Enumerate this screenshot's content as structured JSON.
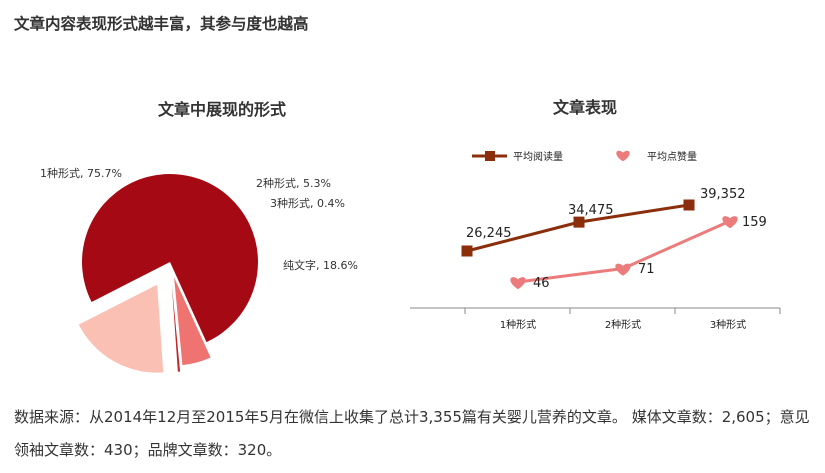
{
  "heading": "文章内容表现形式越丰富，其参与度也越高",
  "footer": "数据来源：从2014年12月至2015年5月在微信上收集了总计3,355篇有关婴儿营养的文章。 媒体文章数：2,605；意见领袖文章数：430；品牌文章数：320。",
  "colors": {
    "dark_red": "#a50a14",
    "salmon": "#ef7370",
    "peach": "#fac0b4",
    "brown": "#8b2e0c",
    "pink": "#ec7c7c"
  },
  "chart_data": [
    {
      "type": "pie",
      "title": "文章中展现的形式",
      "slices": [
        {
          "label": "1种形式, 75.7%",
          "value": 75.7,
          "color": "#a50a14"
        },
        {
          "label": "2种形式, 5.3%",
          "value": 5.3,
          "color": "#ef7370"
        },
        {
          "label": "3种形式, 0.4%",
          "value": 0.4,
          "color": "#c0282a"
        },
        {
          "label": "纯文字, 18.6%",
          "value": 18.6,
          "color": "#fac0b4"
        }
      ]
    },
    {
      "type": "line",
      "title": "文章表现",
      "categories": [
        "1种形式",
        "2种形式",
        "3种形式"
      ],
      "legend_position": "top",
      "series": [
        {
          "name": "平均阅读量",
          "values": [
            26245,
            34475,
            39352
          ],
          "labels": [
            "26,245",
            "34,475",
            "39,352"
          ],
          "color": "#8b2e0c",
          "marker": "square"
        },
        {
          "name": "平均点赞量",
          "values": [
            46,
            71,
            159
          ],
          "labels": [
            "46",
            "71",
            "159"
          ],
          "color": "#ec7c7c",
          "marker": "heart"
        }
      ]
    }
  ]
}
